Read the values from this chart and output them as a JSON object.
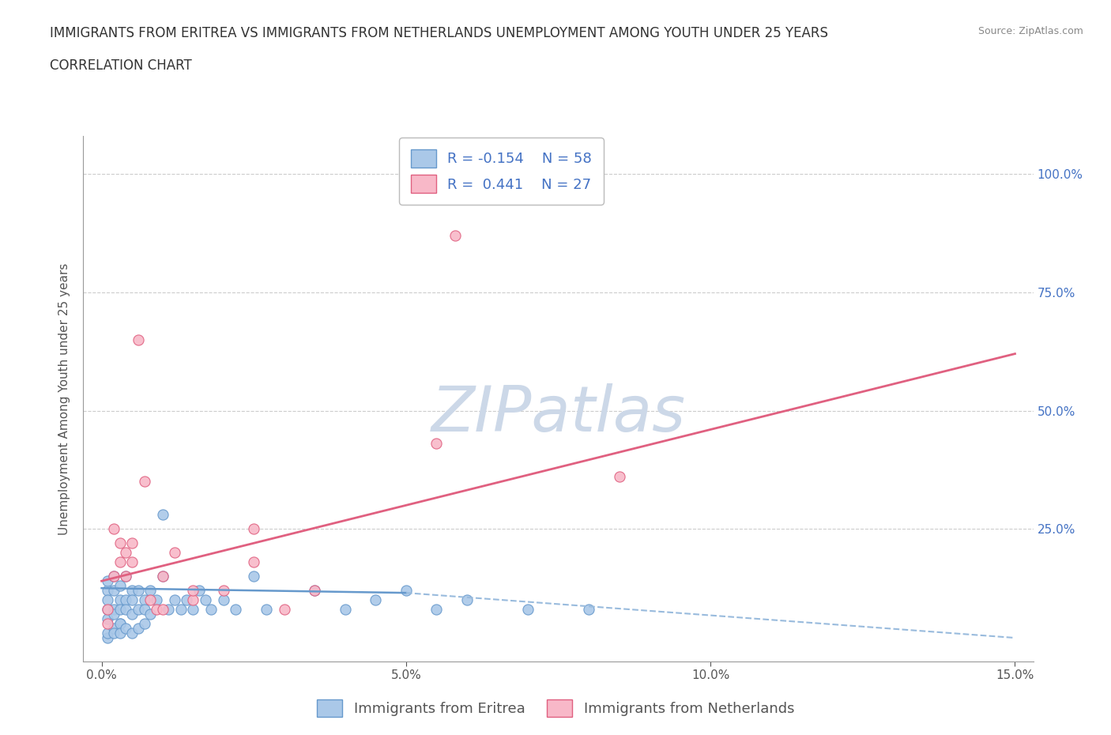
{
  "title_line1": "IMMIGRANTS FROM ERITREA VS IMMIGRANTS FROM NETHERLANDS UNEMPLOYMENT AMONG YOUTH UNDER 25 YEARS",
  "title_line2": "CORRELATION CHART",
  "source_text": "Source: ZipAtlas.com",
  "ylabel": "Unemployment Among Youth under 25 years",
  "xlim": [
    0.0,
    0.15
  ],
  "ylim": [
    0.0,
    1.05
  ],
  "x_ticks": [
    0.0,
    0.05,
    0.1,
    0.15
  ],
  "x_tick_labels": [
    "0.0%",
    "5.0%",
    "10.0%",
    "15.0%"
  ],
  "y_ticks": [
    0.0,
    0.25,
    0.5,
    0.75,
    1.0
  ],
  "y_tick_labels_right": [
    "",
    "25.0%",
    "50.0%",
    "75.0%",
    "100.0%"
  ],
  "R_eritrea": -0.154,
  "N_eritrea": 58,
  "R_netherlands": 0.441,
  "N_netherlands": 27,
  "color_eritrea": "#aac8e8",
  "color_eritrea_edge": "#6699cc",
  "color_eritrea_line_solid": "#6699cc",
  "color_eritrea_line_dashed": "#99bbdd",
  "color_netherlands": "#f8b8c8",
  "color_netherlands_edge": "#e06080",
  "color_netherlands_line": "#e06080",
  "color_gridline": "#cccccc",
  "watermark_color": "#ccd8e8",
  "background_color": "#ffffff",
  "legend_fontsize": 13,
  "title_fontsize": 12,
  "axis_label_fontsize": 11,
  "tick_fontsize": 11,
  "eritrea_x": [
    0.001,
    0.001,
    0.001,
    0.001,
    0.001,
    0.002,
    0.002,
    0.002,
    0.002,
    0.003,
    0.003,
    0.003,
    0.003,
    0.004,
    0.004,
    0.004,
    0.005,
    0.005,
    0.005,
    0.006,
    0.006,
    0.007,
    0.007,
    0.008,
    0.008,
    0.009,
    0.01,
    0.01,
    0.011,
    0.012,
    0.013,
    0.014,
    0.015,
    0.016,
    0.017,
    0.018,
    0.02,
    0.022,
    0.025,
    0.027,
    0.001,
    0.001,
    0.002,
    0.002,
    0.003,
    0.003,
    0.004,
    0.005,
    0.006,
    0.007,
    0.035,
    0.04,
    0.045,
    0.05,
    0.055,
    0.06,
    0.07,
    0.08
  ],
  "eritrea_y": [
    0.08,
    0.12,
    0.06,
    0.14,
    0.1,
    0.08,
    0.12,
    0.15,
    0.07,
    0.1,
    0.13,
    0.08,
    0.05,
    0.1,
    0.15,
    0.08,
    0.12,
    0.07,
    0.1,
    0.08,
    0.12,
    0.1,
    0.08,
    0.12,
    0.07,
    0.1,
    0.28,
    0.15,
    0.08,
    0.1,
    0.08,
    0.1,
    0.08,
    0.12,
    0.1,
    0.08,
    0.1,
    0.08,
    0.15,
    0.08,
    0.02,
    0.03,
    0.04,
    0.03,
    0.05,
    0.03,
    0.04,
    0.03,
    0.04,
    0.05,
    0.12,
    0.08,
    0.1,
    0.12,
    0.08,
    0.1,
    0.08,
    0.08
  ],
  "netherlands_x": [
    0.001,
    0.001,
    0.002,
    0.002,
    0.003,
    0.003,
    0.004,
    0.004,
    0.005,
    0.005,
    0.006,
    0.007,
    0.008,
    0.009,
    0.01,
    0.012,
    0.015,
    0.02,
    0.025,
    0.03,
    0.035,
    0.055,
    0.058,
    0.085,
    0.01,
    0.015,
    0.025
  ],
  "netherlands_y": [
    0.08,
    0.05,
    0.25,
    0.15,
    0.22,
    0.18,
    0.2,
    0.15,
    0.22,
    0.18,
    0.65,
    0.35,
    0.1,
    0.08,
    0.15,
    0.2,
    0.1,
    0.12,
    0.18,
    0.08,
    0.12,
    0.43,
    0.87,
    0.36,
    0.08,
    0.12,
    0.25
  ],
  "nl_trend_x0": 0.0,
  "nl_trend_y0": 0.14,
  "nl_trend_x1": 0.15,
  "nl_trend_y1": 0.62,
  "er_trend_solid_x0": 0.0,
  "er_trend_solid_y0": 0.125,
  "er_trend_solid_x1": 0.05,
  "er_trend_solid_y1": 0.115,
  "er_trend_dashed_x0": 0.05,
  "er_trend_dashed_y0": 0.115,
  "er_trend_dashed_x1": 0.15,
  "er_trend_dashed_y1": 0.02
}
